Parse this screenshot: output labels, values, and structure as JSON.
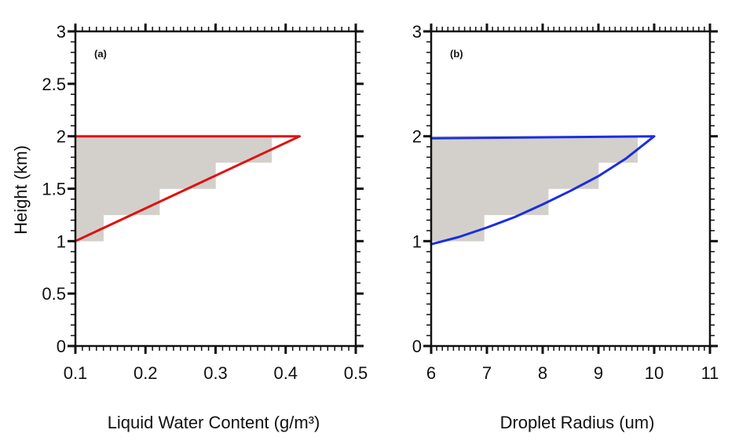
{
  "chart_data": [
    {
      "type": "line",
      "panel_label": "(a)",
      "xlabel": "Liquid Water Content  (g/m³)",
      "ylabel": "Height (km)",
      "xlim": [
        0.1,
        0.5
      ],
      "ylim": [
        0,
        3
      ],
      "x_ticks": [
        "0.1",
        "0.2",
        "0.3",
        "0.4",
        "0.5"
      ],
      "y_ticks": [
        "0",
        "0.5",
        "1",
        "1.5",
        "2",
        "2.5",
        "3"
      ],
      "grid": false,
      "series": [
        {
          "color": "#e01010",
          "x": [
            0.1,
            0.42,
            0.1
          ],
          "y": [
            1.0,
            2.0,
            2.0
          ]
        }
      ],
      "shaded_steps": {
        "color": "#d3d0cb",
        "levels": [
          {
            "y0": 1.0,
            "y1": 1.25,
            "x": 0.14
          },
          {
            "y0": 1.25,
            "y1": 1.5,
            "x": 0.22
          },
          {
            "y0": 1.5,
            "y1": 1.75,
            "x": 0.3
          },
          {
            "y0": 1.75,
            "y1": 2.0,
            "x": 0.38
          }
        ]
      }
    },
    {
      "type": "line",
      "panel_label": "(b)",
      "xlabel": "Droplet Radius  (um)",
      "ylabel": "",
      "xlim": [
        6,
        11
      ],
      "ylim": [
        0,
        3
      ],
      "x_ticks": [
        "6",
        "7",
        "8",
        "9",
        "10",
        "11"
      ],
      "y_ticks": [
        "0",
        "1",
        "2",
        "3"
      ],
      "grid": false,
      "series": [
        {
          "color": "#1a2ee0",
          "x": [
            6.0,
            6.5,
            7.0,
            7.5,
            8.0,
            8.5,
            9.0,
            9.5,
            10.0,
            6.0
          ],
          "y": [
            0.97,
            1.04,
            1.13,
            1.23,
            1.35,
            1.48,
            1.62,
            1.79,
            2.0,
            1.98
          ]
        }
      ],
      "shaded_steps": {
        "color": "#d3d0cb",
        "levels": [
          {
            "y0": 1.0,
            "y1": 1.25,
            "x": 6.95
          },
          {
            "y0": 1.25,
            "y1": 1.5,
            "x": 8.1
          },
          {
            "y0": 1.5,
            "y1": 1.75,
            "x": 9.0
          },
          {
            "y0": 1.75,
            "y1": 2.0,
            "x": 9.7
          }
        ]
      }
    }
  ]
}
